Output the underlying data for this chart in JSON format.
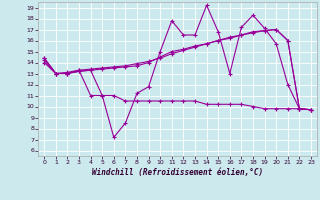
{
  "xlabel": "Windchill (Refroidissement éolien,°C)",
  "xlim": [
    -0.5,
    23.5
  ],
  "ylim": [
    5.5,
    19.5
  ],
  "xticks": [
    0,
    1,
    2,
    3,
    4,
    5,
    6,
    7,
    8,
    9,
    10,
    11,
    12,
    13,
    14,
    15,
    16,
    17,
    18,
    19,
    20,
    21,
    22,
    23
  ],
  "yticks": [
    6,
    7,
    8,
    9,
    10,
    11,
    12,
    13,
    14,
    15,
    16,
    17,
    18,
    19
  ],
  "bg_color": "#cce9ed",
  "line_color": "#990099",
  "grid_color": "#ffffff",
  "series1_x": [
    0,
    1,
    2,
    3,
    4,
    5,
    6,
    7,
    8,
    9,
    10,
    11,
    12,
    13,
    14,
    15,
    16,
    17,
    18,
    19,
    20,
    21,
    22,
    23
  ],
  "series1_y": [
    14.4,
    13.0,
    13.0,
    13.2,
    13.3,
    11.0,
    7.2,
    8.5,
    11.2,
    11.8,
    15.0,
    17.8,
    16.5,
    16.5,
    19.2,
    16.8,
    13.0,
    17.2,
    18.3,
    17.1,
    15.7,
    12.0,
    9.8,
    9.7
  ],
  "series2_x": [
    0,
    1,
    2,
    3,
    4,
    5,
    6,
    7,
    8,
    9,
    10,
    11,
    12,
    13,
    14,
    15,
    16,
    17,
    18,
    19,
    20,
    21,
    22,
    23
  ],
  "series2_y": [
    14.2,
    13.0,
    13.0,
    13.2,
    13.3,
    13.4,
    13.5,
    13.6,
    13.7,
    14.0,
    14.5,
    15.0,
    15.2,
    15.5,
    15.7,
    16.0,
    16.3,
    16.5,
    16.8,
    16.9,
    17.0,
    16.0,
    9.8,
    9.7
  ],
  "series3_x": [
    0,
    1,
    2,
    3,
    4,
    5,
    6,
    7,
    8,
    9,
    10,
    11,
    12,
    13,
    14,
    15,
    16,
    17,
    18,
    19,
    20,
    21,
    22,
    23
  ],
  "series3_y": [
    14.0,
    13.0,
    13.1,
    13.3,
    13.4,
    13.5,
    13.6,
    13.7,
    13.9,
    14.1,
    14.4,
    14.8,
    15.1,
    15.4,
    15.7,
    16.0,
    16.2,
    16.5,
    16.7,
    16.9,
    17.0,
    16.0,
    9.8,
    9.7
  ],
  "series4_x": [
    0,
    1,
    2,
    3,
    4,
    5,
    6,
    7,
    8,
    9,
    10,
    11,
    12,
    13,
    14,
    15,
    16,
    17,
    18,
    19,
    20,
    21,
    22,
    23
  ],
  "series4_y": [
    14.4,
    13.0,
    13.0,
    13.3,
    11.0,
    11.0,
    11.0,
    10.5,
    10.5,
    10.5,
    10.5,
    10.5,
    10.5,
    10.5,
    10.2,
    10.2,
    10.2,
    10.2,
    10.0,
    9.8,
    9.8,
    9.8,
    9.8,
    9.7
  ]
}
